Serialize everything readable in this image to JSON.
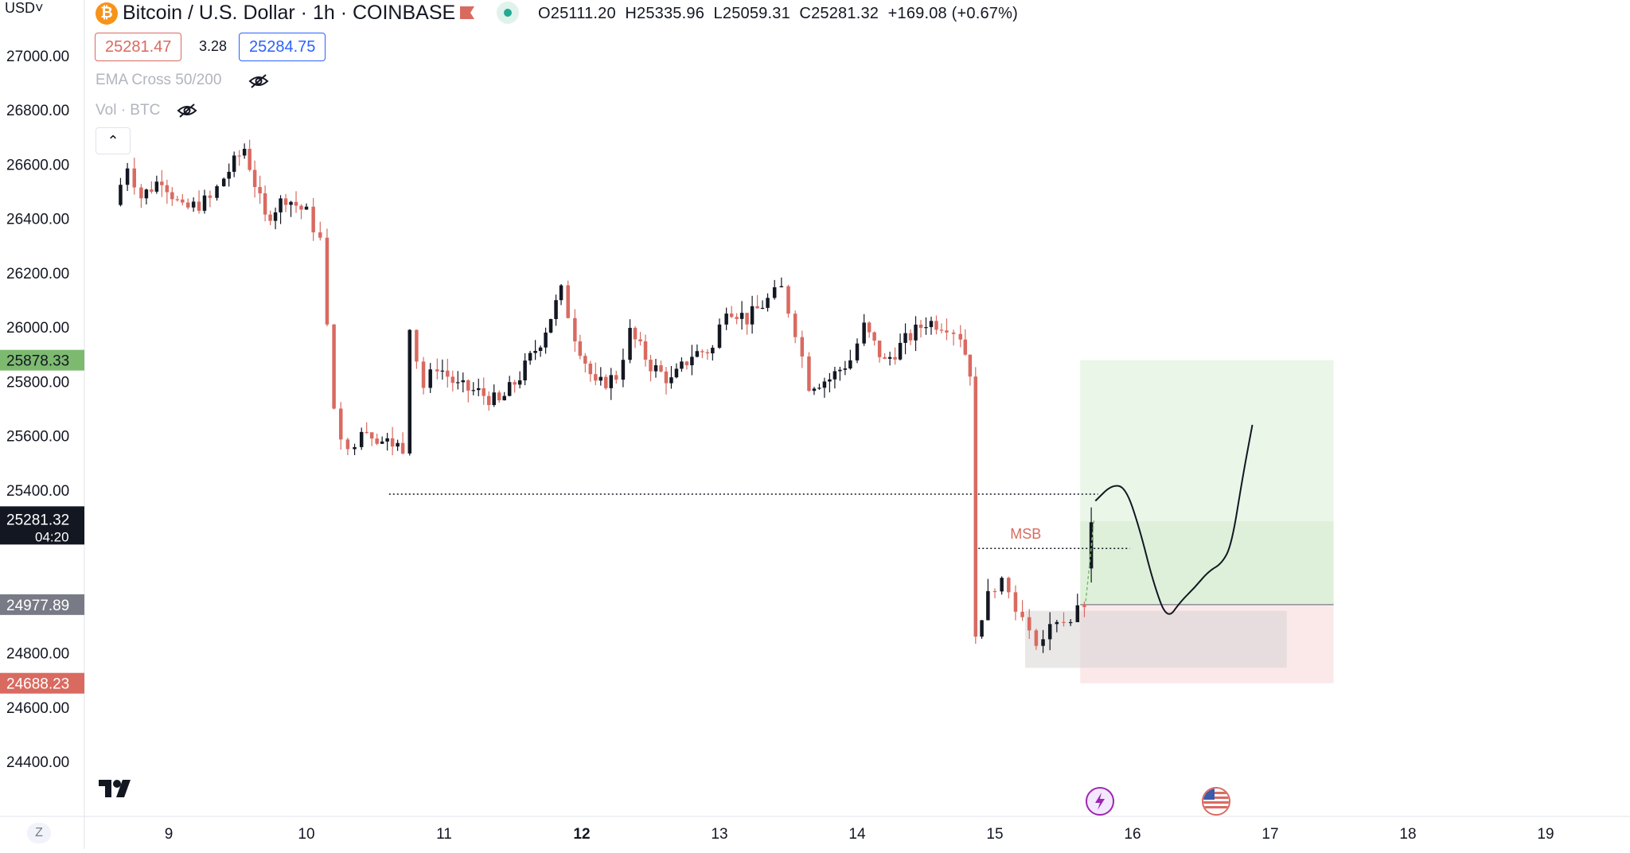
{
  "currency_selector": "USD",
  "header": {
    "symbol_title": "Bitcoin / U.S. Dollar · 1h · COINBASE",
    "ohlc": {
      "o_label": "O",
      "o": "25111.20",
      "h_label": "H",
      "h": "25335.96",
      "l_label": "L",
      "l": "25059.31",
      "c_label": "C",
      "c": "25281.32",
      "change": "+169.08 (+0.67%)"
    },
    "sell_price": "25281.47",
    "spread": "3.28",
    "buy_price": "25284.75",
    "indicators": [
      {
        "label": "EMA Cross 50/200"
      },
      {
        "label": "Vol · BTC"
      }
    ],
    "collapse_icon": "chevron-up-icon"
  },
  "colors": {
    "up": "#131722",
    "down": "#d96a60",
    "profit_zone": "#d9eed6",
    "loss_zone": "#f8dbdc",
    "current_price_bg": "#131722",
    "target_badge": "#7dba70",
    "stop_badge": "#d96a60",
    "entry_badge": "#787b86"
  },
  "chart_data": {
    "type": "candlestick",
    "title": "Bitcoin / U.S. Dollar · 1h · COINBASE",
    "ylim": [
      24250,
      27150
    ],
    "y_ticks": [
      "27000.00",
      "26800.00",
      "26600.00",
      "26400.00",
      "26200.00",
      "26000.00",
      "25800.00",
      "25600.00",
      "25400.00",
      "24800.00",
      "24600.00",
      "24400.00"
    ],
    "x_ticks": [
      {
        "label": "9",
        "day": 9,
        "bold": false
      },
      {
        "label": "10",
        "day": 10,
        "bold": false
      },
      {
        "label": "11",
        "day": 11,
        "bold": false
      },
      {
        "label": "12",
        "day": 12,
        "bold": true
      },
      {
        "label": "13",
        "day": 13,
        "bold": false
      },
      {
        "label": "14",
        "day": 14,
        "bold": false
      },
      {
        "label": "15",
        "day": 15,
        "bold": false
      },
      {
        "label": "16",
        "day": 16,
        "bold": false
      },
      {
        "label": "17",
        "day": 17,
        "bold": false
      },
      {
        "label": "18",
        "day": 18,
        "bold": false
      },
      {
        "label": "19",
        "day": 19,
        "bold": false
      }
    ],
    "x_range_days": [
      8.4,
      19.3
    ],
    "price_labels": {
      "current": {
        "value": 25281.32,
        "text": "25281.32",
        "countdown": "04:20"
      },
      "target": {
        "value": 25878.33,
        "text": "25878.33"
      },
      "entry": {
        "value": 24977.89,
        "text": "24977.89"
      },
      "stop": {
        "value": 24688.23,
        "text": "24688.23"
      }
    },
    "candle_anchors": [
      [
        8.6,
        26450
      ],
      [
        8.7,
        26600
      ],
      [
        8.8,
        26480
      ],
      [
        8.95,
        26550
      ],
      [
        9.1,
        26430
      ],
      [
        9.3,
        26470
      ],
      [
        9.4,
        26550
      ],
      [
        9.55,
        26660
      ],
      [
        9.7,
        26400
      ],
      [
        9.85,
        26480
      ],
      [
        10.0,
        26420
      ],
      [
        10.1,
        26320
      ],
      [
        10.2,
        25700
      ],
      [
        10.3,
        25530
      ],
      [
        10.4,
        25640
      ],
      [
        10.55,
        25580
      ],
      [
        10.7,
        25560
      ],
      [
        10.75,
        25990
      ],
      [
        10.85,
        25780
      ],
      [
        10.95,
        25860
      ],
      [
        11.1,
        25780
      ],
      [
        11.25,
        25760
      ],
      [
        11.4,
        25720
      ],
      [
        11.55,
        25820
      ],
      [
        11.7,
        25950
      ],
      [
        11.85,
        26130
      ],
      [
        11.95,
        25970
      ],
      [
        12.1,
        25780
      ],
      [
        12.25,
        25820
      ],
      [
        12.35,
        25980
      ],
      [
        12.5,
        25860
      ],
      [
        12.65,
        25800
      ],
      [
        12.8,
        25900
      ],
      [
        12.95,
        25920
      ],
      [
        13.05,
        26080
      ],
      [
        13.2,
        26030
      ],
      [
        13.35,
        26100
      ],
      [
        13.45,
        26140
      ],
      [
        13.55,
        25990
      ],
      [
        13.65,
        25790
      ],
      [
        13.8,
        25810
      ],
      [
        13.95,
        25880
      ],
      [
        14.05,
        26000
      ],
      [
        14.2,
        25870
      ],
      [
        14.35,
        25950
      ],
      [
        14.5,
        26020
      ],
      [
        14.65,
        26010
      ],
      [
        14.75,
        25970
      ],
      [
        14.82,
        25840
      ],
      [
        14.86,
        24860
      ],
      [
        14.95,
        25040
      ],
      [
        15.05,
        25070
      ],
      [
        15.15,
        24980
      ],
      [
        15.25,
        24860
      ],
      [
        15.35,
        24850
      ],
      [
        15.45,
        24930
      ],
      [
        15.55,
        24920
      ],
      [
        15.65,
        24980
      ],
      [
        15.7,
        25290
      ]
    ],
    "candle_step_days": 0.0417,
    "last_candle": {
      "open": 25111.2,
      "high": 25335.96,
      "low": 25059.31,
      "close": 25281.32
    },
    "annotations": {
      "support_line": {
        "price": 25385,
        "from_day": 10.6,
        "to_day": 15.75,
        "style": "dotted"
      },
      "msb": {
        "label": "MSB",
        "price": 25185,
        "from_day": 14.88,
        "to_day": 15.98,
        "style": "dotted"
      },
      "long_position": {
        "from_day": 15.62,
        "to_day": 17.46,
        "entry": 24977.89,
        "target": 25878.33,
        "stop": 24688.23,
        "inner_target": 25285,
        "inner_stop": 24745
      },
      "consolidation_box": {
        "from_day": 15.22,
        "to_day": 17.12,
        "top": 24955,
        "bottom": 24745
      },
      "projection_path": [
        [
          15.73,
          25360
        ],
        [
          15.85,
          25420
        ],
        [
          15.95,
          25410
        ],
        [
          16.05,
          25260
        ],
        [
          16.15,
          25060
        ],
        [
          16.25,
          24920
        ],
        [
          16.35,
          24990
        ],
        [
          16.45,
          25040
        ],
        [
          16.55,
          25100
        ],
        [
          16.65,
          25130
        ],
        [
          16.72,
          25200
        ],
        [
          16.8,
          25450
        ],
        [
          16.87,
          25640
        ]
      ]
    },
    "legend": "none",
    "grid": false
  },
  "footer": {
    "logo": "tradingview-logo-icon",
    "z_label": "Z",
    "event_icons": [
      "lightning-event-icon",
      "us-flag-event-icon"
    ]
  }
}
